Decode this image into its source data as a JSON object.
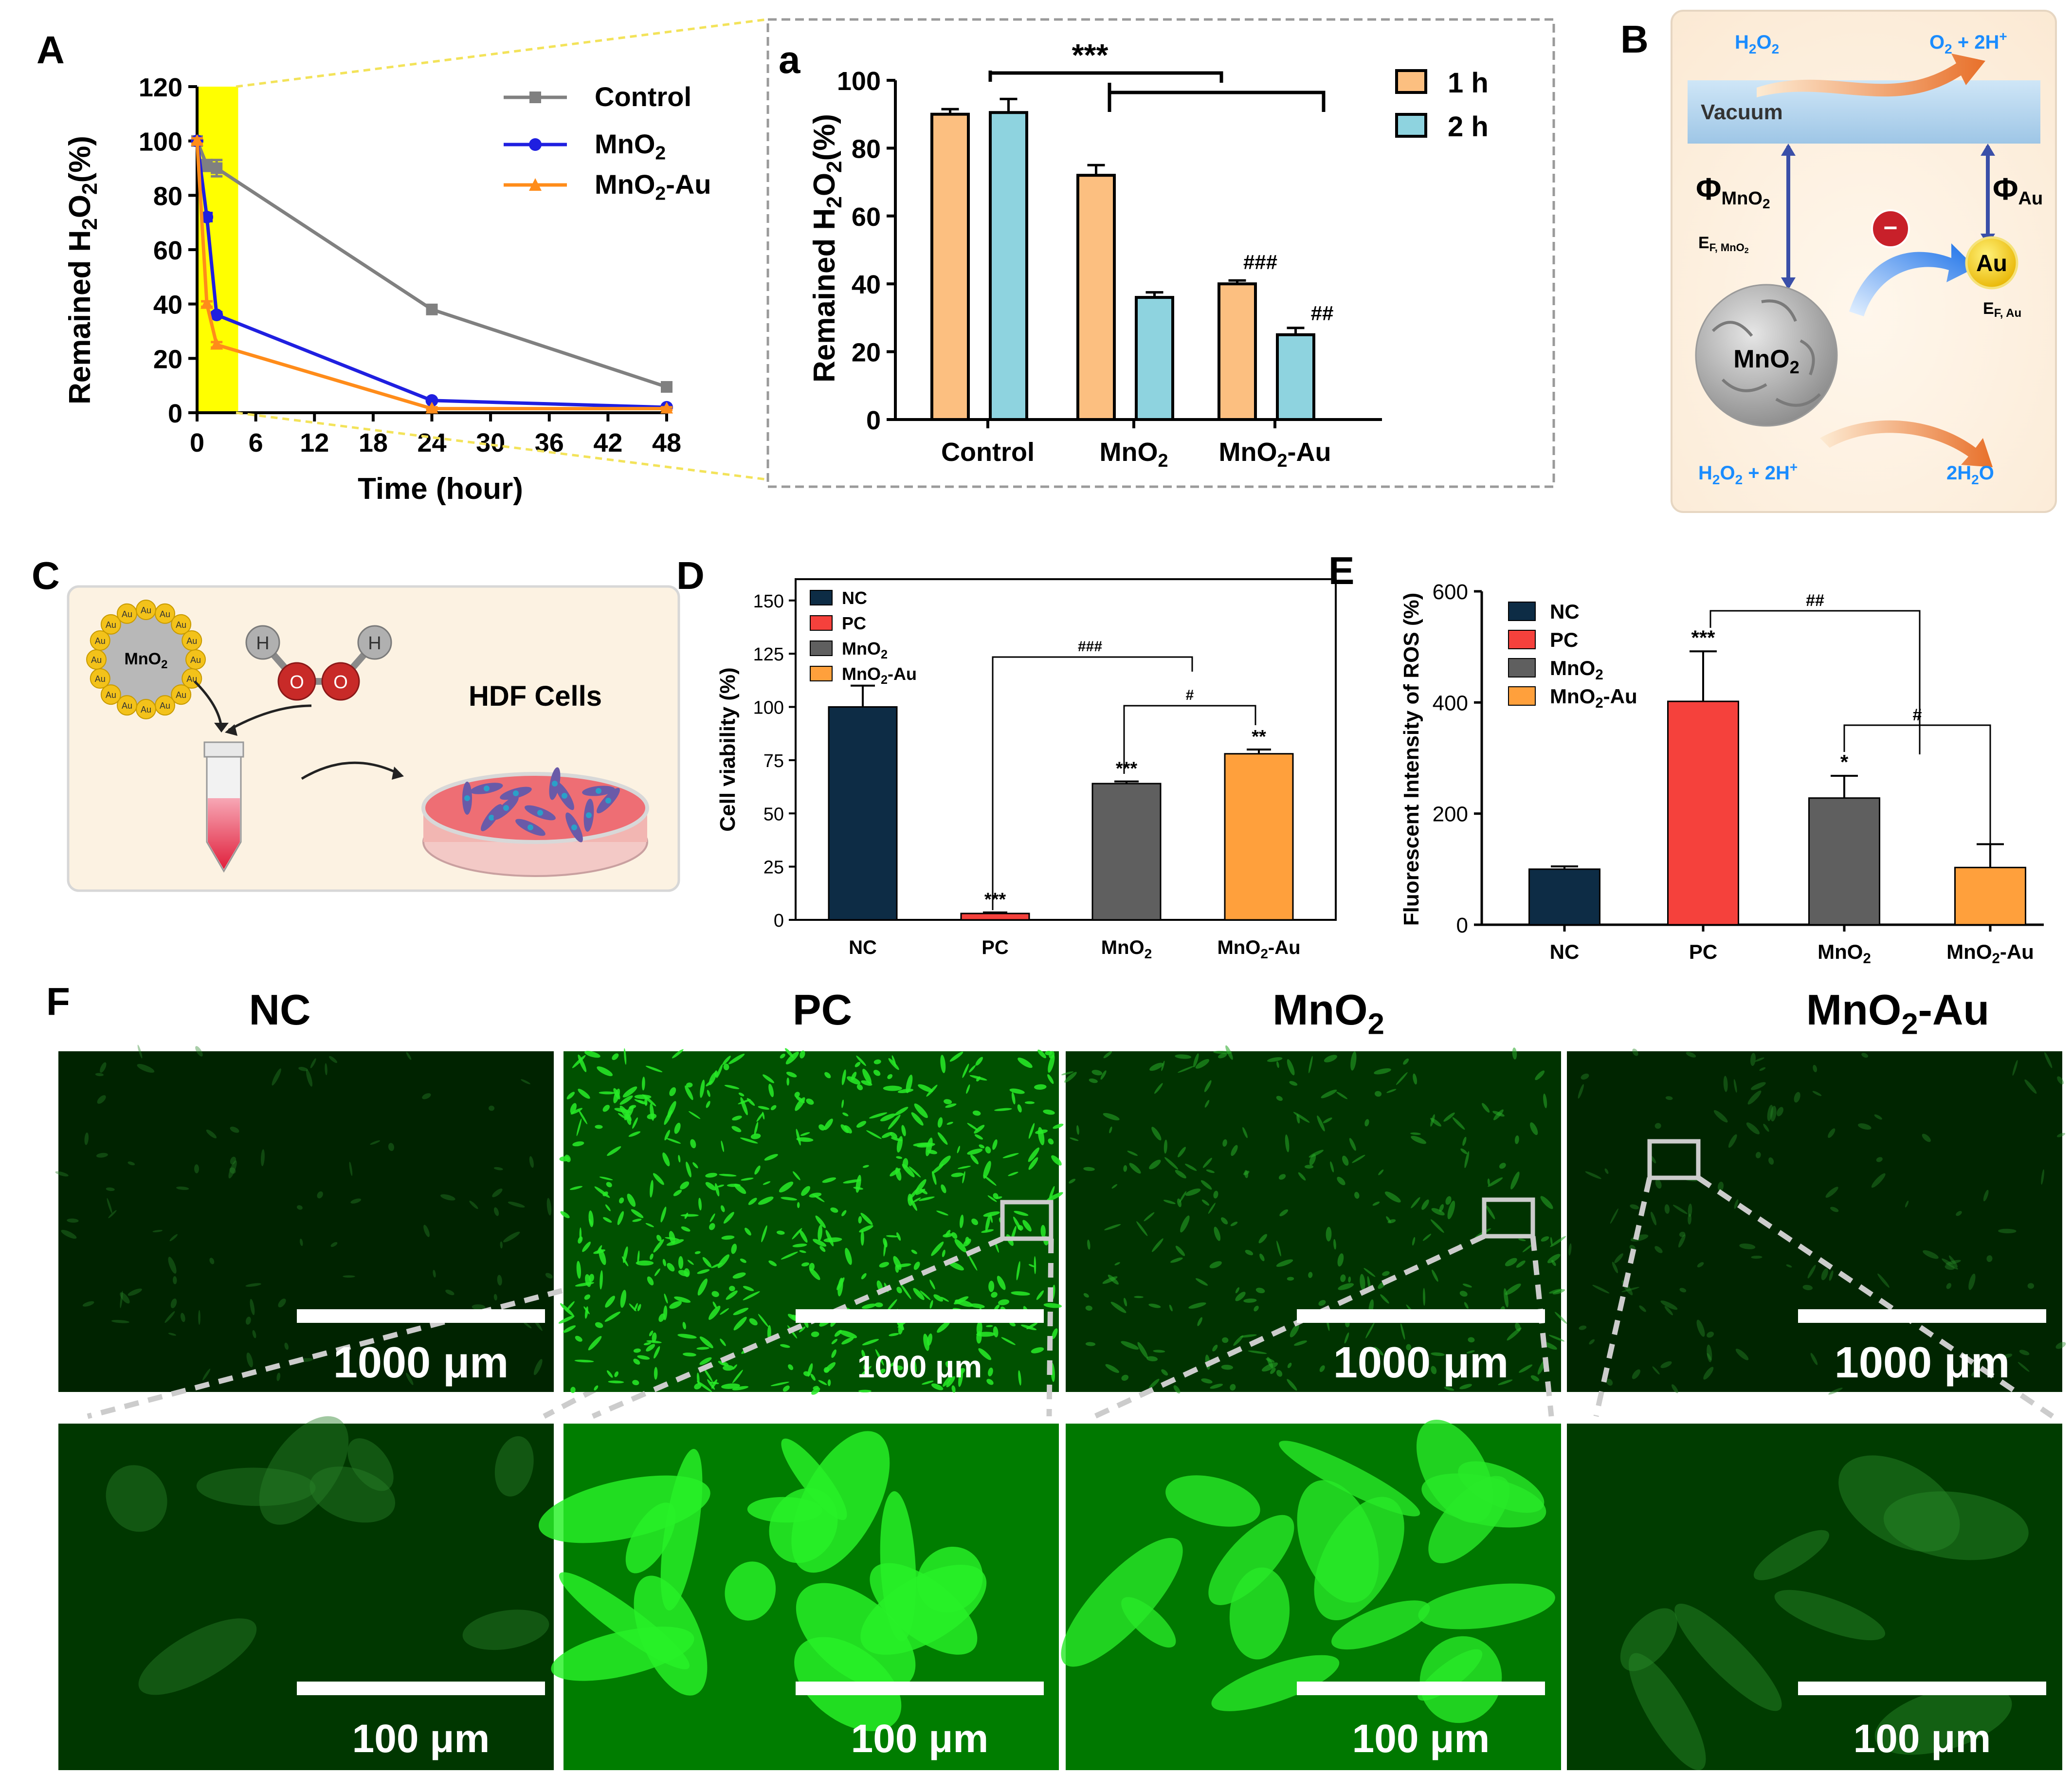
{
  "colors": {
    "control": "#808080",
    "mno2_line": "#1f1fe0",
    "mno2au_line": "#ff8c1a",
    "highlight": "#ffff00",
    "bar_1h": "#fcbf80",
    "bar_2h": "#8ed3df",
    "nc": "#0d2c45",
    "pc": "#f5413c",
    "mno2": "#5f5f5f",
    "mno2au": "#ffa03c",
    "accent_blue": "#1a8cff",
    "green_fluor": "#22e022"
  },
  "panels": {
    "A": {
      "label": "A",
      "ylabel_main": "Remained H",
      "ylabel_sub": "2",
      "ylabel_tail": "O",
      "ylabel_tail_sub": "2",
      "ylabel_unit": "(%)",
      "xlabel": "Time (hour)",
      "legend": [
        {
          "label": "Control",
          "sub": "",
          "tail": ""
        },
        {
          "label": "MnO",
          "sub": "2",
          "tail": ""
        },
        {
          "label": "MnO",
          "sub": "2",
          "tail": "-Au"
        }
      ]
    },
    "a": {
      "label": "a",
      "ylabel_main": "Remained H",
      "ylabel_sub": "2",
      "ylabel_tail": "O",
      "ylabel_tail_sub": "2",
      "ylabel_unit": "(%)",
      "legend": [
        "1 h",
        "2 h"
      ],
      "sig_top": "***",
      "hash_1h": "###",
      "hash_2h": "##"
    },
    "B": {
      "label": "B",
      "h2o2_top": "H",
      "h2o2_top_sub": "2",
      "h2o2_top_tail": "O",
      "h2o2_top_tail_sub": "2",
      "o2_top": "O",
      "o2_top_sub": "2",
      "o2_top_tail": " + 2H",
      "o2_top_sup": "+",
      "vacuum": "Vacuum",
      "phi_mno2": "Φ",
      "phi_mno2_sub": "MnO",
      "phi_mno2_sub2": "2",
      "phi_au": "Φ",
      "phi_au_sub": "Au",
      "ef_mno2": "E",
      "ef_mno2_sub": "F, MnO",
      "ef_mno2_sub2": "2",
      "ef_au": "E",
      "ef_au_sub": "F, Au",
      "minus": "−",
      "au": "Au",
      "mno2": "MnO",
      "mno2_sub": "2",
      "bottom_left": "H",
      "bottom_left_sub": "2",
      "bottom_left_tail": "O",
      "bottom_left_sub2": "2",
      "bottom_left_end": " + 2H",
      "bottom_left_sup": "+",
      "bottom_right": "2H",
      "bottom_right_sub": "2",
      "bottom_right_tail": "O"
    },
    "C": {
      "label": "C",
      "particle": "MnO",
      "particle_sub": "2",
      "au": "Au",
      "h": "H",
      "o": "O",
      "cells": "HDF Cells"
    },
    "D": {
      "label": "D",
      "ylabel": "Cell viability (%)",
      "legend": [
        {
          "label": "NC",
          "sub": "",
          "tail": ""
        },
        {
          "label": "PC",
          "sub": "",
          "tail": ""
        },
        {
          "label": "MnO",
          "sub": "2",
          "tail": ""
        },
        {
          "label": "MnO",
          "sub": "2",
          "tail": "-Au"
        }
      ],
      "stars": [
        "",
        "***",
        "***",
        "**"
      ],
      "hash_a": "###",
      "hash_b": "#"
    },
    "E": {
      "label": "E",
      "ylabel": "Fluorescent Intensity of ROS (%)",
      "legend": [
        {
          "label": "NC",
          "sub": "",
          "tail": ""
        },
        {
          "label": "PC",
          "sub": "",
          "tail": ""
        },
        {
          "label": "MnO",
          "sub": "2",
          "tail": ""
        },
        {
          "label": "MnO",
          "sub": "2",
          "tail": "-Au"
        }
      ],
      "stars": [
        "",
        "***",
        "*",
        ""
      ],
      "hash_a": "##",
      "hash_b": "#"
    },
    "F": {
      "label": "F",
      "columns": [
        {
          "title": "NC",
          "sub": "",
          "tail": ""
        },
        {
          "title": "PC",
          "sub": "",
          "tail": ""
        },
        {
          "title": "MnO",
          "sub": "2",
          "tail": ""
        },
        {
          "title": "MnO",
          "sub": "2",
          "tail": "-Au"
        }
      ],
      "scale_top": "1000 μm",
      "scale_bottom": "100 μm",
      "brightness_top": [
        0.08,
        0.85,
        0.35,
        0.12
      ],
      "brightness_bottom": [
        0.25,
        0.95,
        0.9,
        0.3
      ]
    }
  },
  "chart_data": [
    {
      "type": "line",
      "panel": "A",
      "x": [
        0,
        1,
        2,
        24,
        48
      ],
      "xticks": [
        0,
        6,
        12,
        18,
        24,
        30,
        36,
        42,
        48
      ],
      "yticks": [
        0,
        20,
        40,
        60,
        80,
        100,
        120
      ],
      "xlim": [
        0,
        48
      ],
      "ylim": [
        0,
        120
      ],
      "highlight_x": [
        0,
        2
      ],
      "series": [
        {
          "name": "Control",
          "x": [
            0,
            1,
            2,
            24,
            48
          ],
          "values": [
            100,
            91,
            90,
            38,
            9.5
          ],
          "err": [
            1.5,
            2,
            3,
            1,
            0.5
          ],
          "marker": "square"
        },
        {
          "name": "MnO2",
          "x": [
            0,
            1,
            2,
            24,
            48
          ],
          "values": [
            100,
            72,
            36,
            4.5,
            2
          ],
          "err": [
            1,
            1.5,
            1,
            0.5,
            0.5
          ],
          "marker": "circle"
        },
        {
          "name": "MnO2-Au",
          "x": [
            0,
            1,
            2,
            24,
            48
          ],
          "values": [
            100,
            40,
            25,
            1.5,
            1.5
          ],
          "err": [
            1,
            1,
            1,
            0.5,
            0.5
          ],
          "marker": "triangle"
        }
      ]
    },
    {
      "type": "bar",
      "panel": "a",
      "categories": [
        "Control",
        "MnO2",
        "MnO2-Au"
      ],
      "category_labels": [
        {
          "t": "Control",
          "s": "",
          "e": ""
        },
        {
          "t": "MnO",
          "s": "2",
          "e": ""
        },
        {
          "t": "MnO",
          "s": "2",
          "e": "-Au"
        }
      ],
      "ylim": [
        0,
        100
      ],
      "yticks": [
        0,
        20,
        40,
        60,
        80,
        100
      ],
      "series": [
        {
          "name": "1 h",
          "values": [
            90,
            72,
            40
          ],
          "err": [
            1.5,
            3,
            1
          ]
        },
        {
          "name": "2 h",
          "values": [
            90.5,
            36,
            25
          ],
          "err": [
            4,
            1.5,
            2
          ]
        }
      ]
    },
    {
      "type": "bar",
      "panel": "D",
      "categories": [
        "NC",
        "PC",
        "MnO2",
        "MnO2-Au"
      ],
      "category_labels": [
        {
          "t": "NC",
          "s": "",
          "e": ""
        },
        {
          "t": "PC",
          "s": "",
          "e": ""
        },
        {
          "t": "MnO",
          "s": "2",
          "e": ""
        },
        {
          "t": "MnO",
          "s": "2",
          "e": "-Au"
        }
      ],
      "ylim": [
        0,
        160
      ],
      "yticks": [
        0,
        25,
        50,
        75,
        100,
        125,
        150
      ],
      "values": [
        100,
        3,
        64,
        78
      ],
      "err": [
        10,
        0.5,
        1,
        2
      ]
    },
    {
      "type": "bar",
      "panel": "E",
      "categories": [
        "NC",
        "PC",
        "MnO2",
        "MnO2-Au"
      ],
      "category_labels": [
        {
          "t": "NC",
          "s": "",
          "e": ""
        },
        {
          "t": "PC",
          "s": "",
          "e": ""
        },
        {
          "t": "MnO",
          "s": "2",
          "e": ""
        },
        {
          "t": "MnO",
          "s": "2",
          "e": "-Au"
        }
      ],
      "ylim": [
        0,
        600
      ],
      "yticks": [
        0,
        200,
        400,
        600
      ],
      "values": [
        100,
        402,
        228,
        103
      ],
      "err": [
        5,
        90,
        40,
        42
      ]
    }
  ]
}
